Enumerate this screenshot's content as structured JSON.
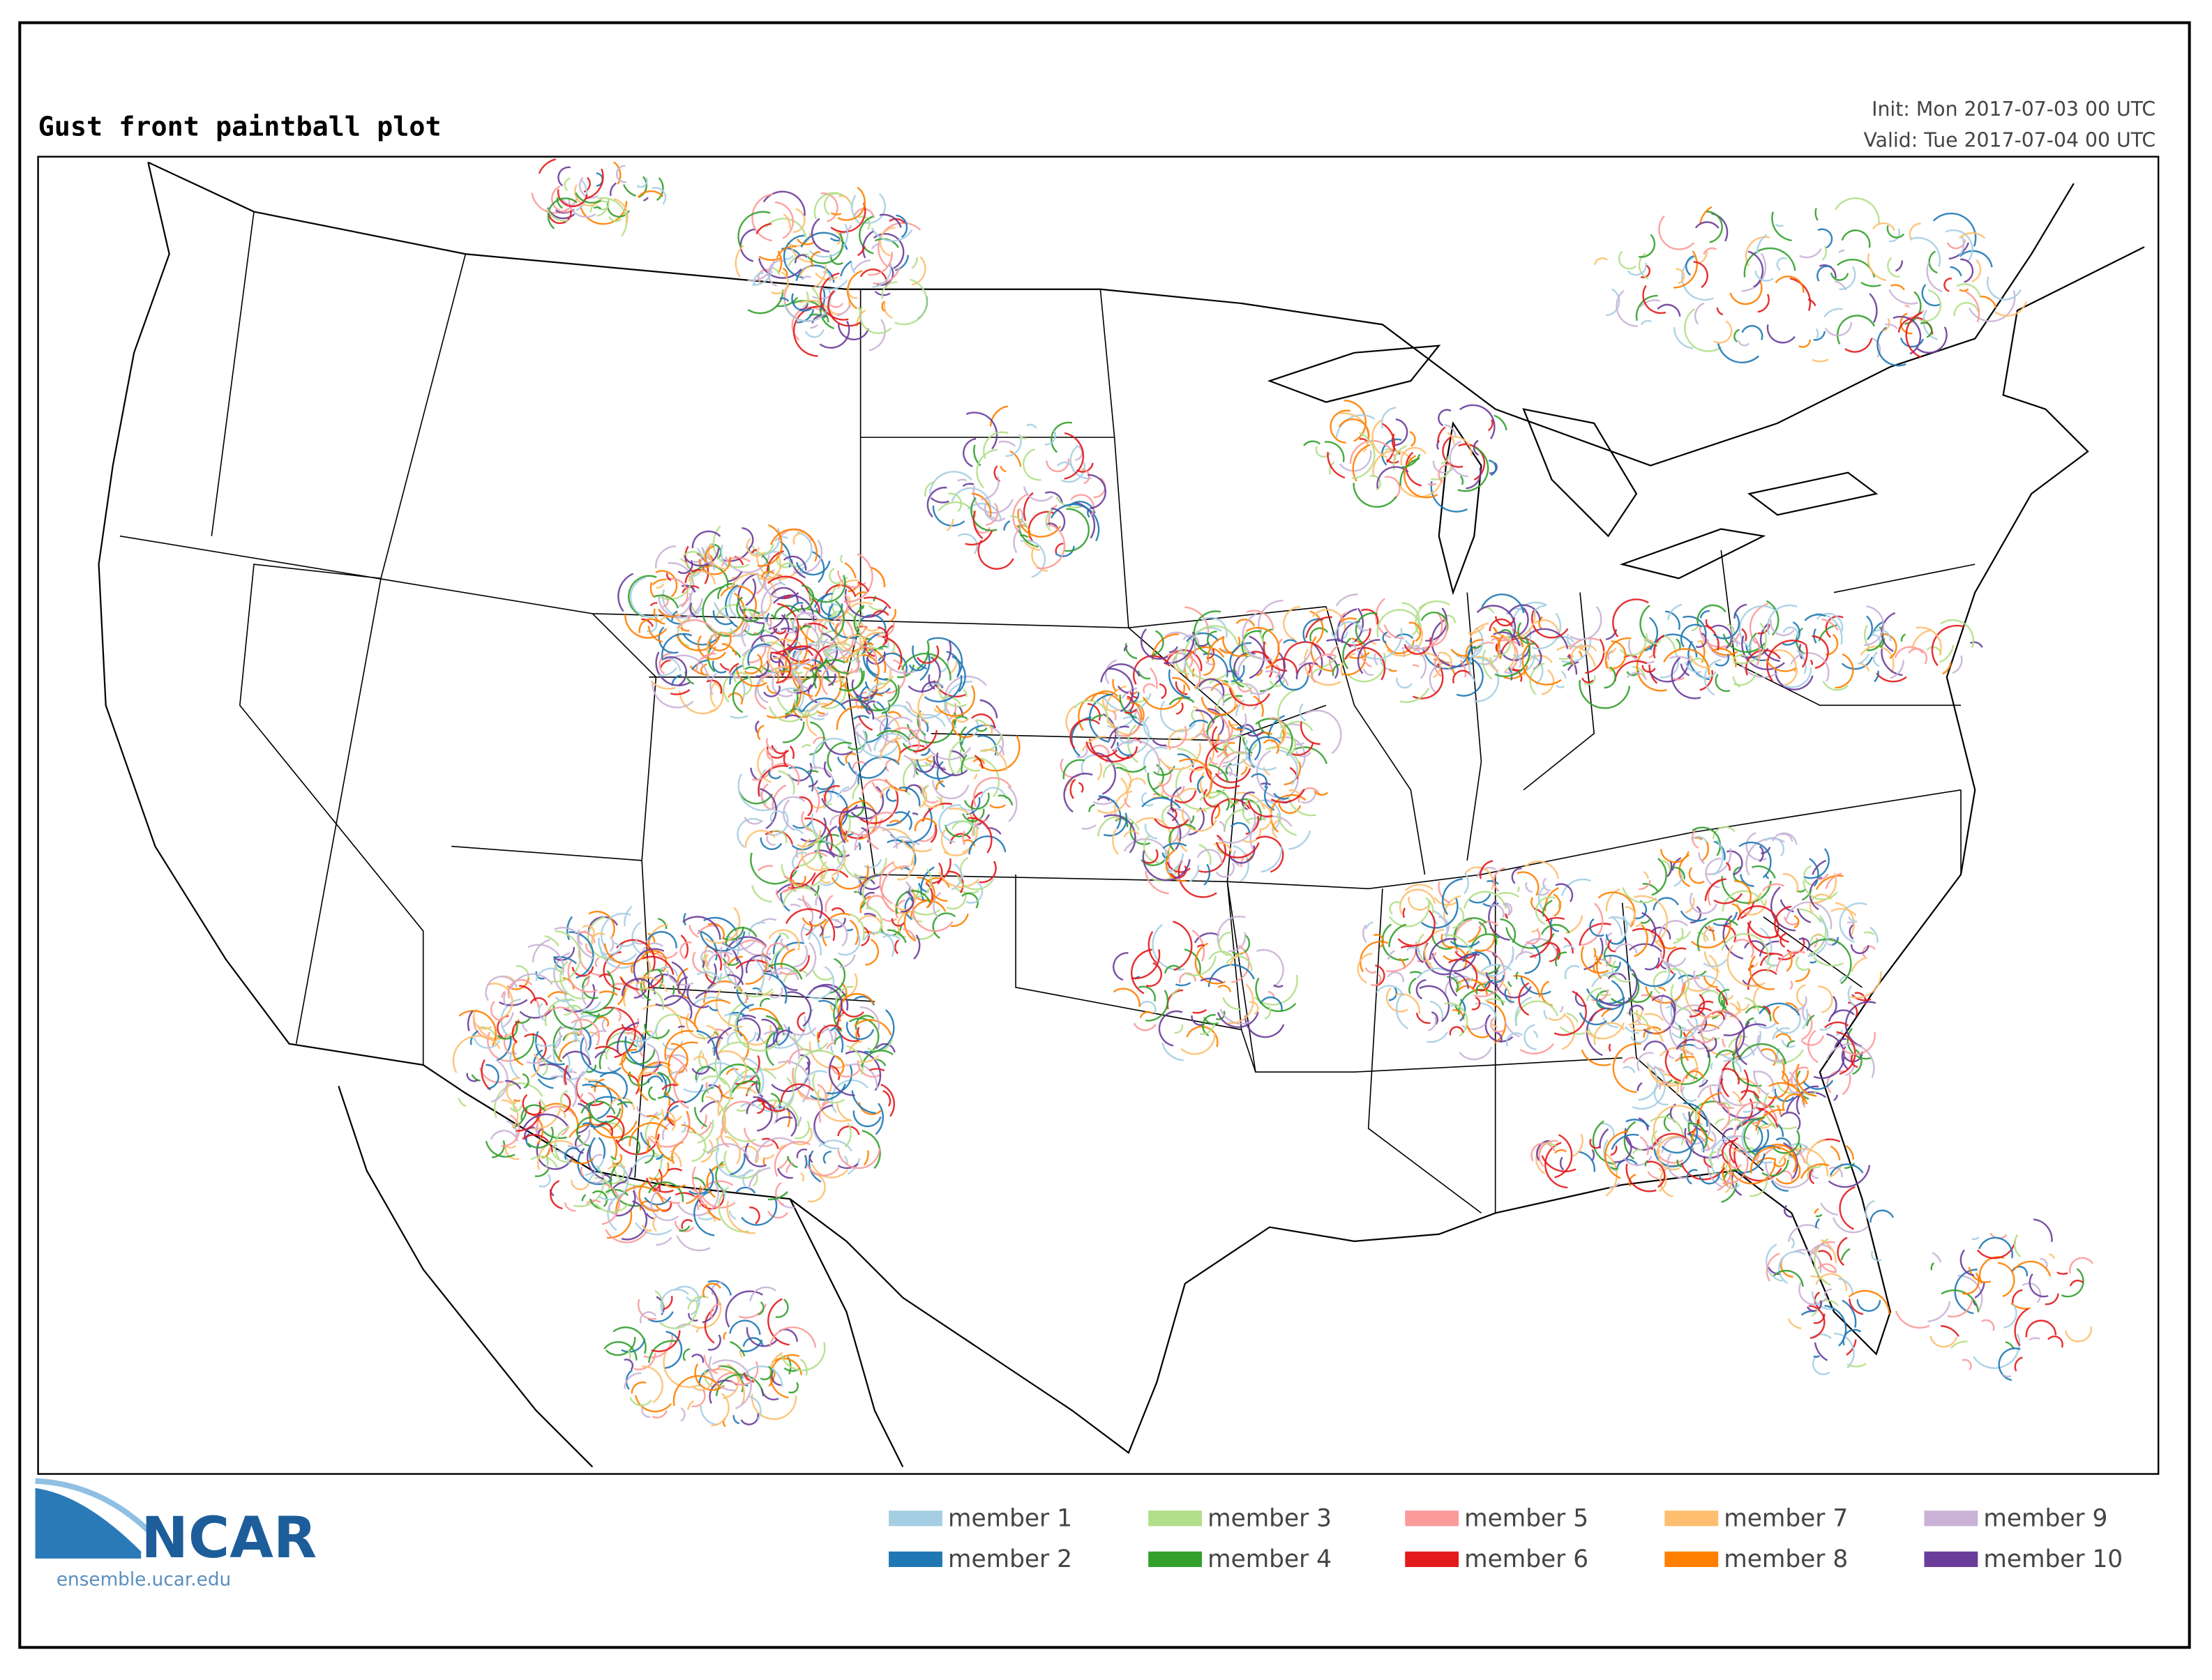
{
  "header": {
    "title": "Gust front paintball plot",
    "init": "Init: Mon 2017-07-03 00 UTC",
    "valid": "Valid: Tue 2017-07-04 00 UTC"
  },
  "legend": {
    "items": [
      {
        "label": "member 1",
        "color": "#a6cee3"
      },
      {
        "label": "member 2",
        "color": "#1f78b4"
      },
      {
        "label": "member 3",
        "color": "#b2df8a"
      },
      {
        "label": "member 4",
        "color": "#33a02c"
      },
      {
        "label": "member 5",
        "color": "#fb9a99"
      },
      {
        "label": "member 6",
        "color": "#e31a1c"
      },
      {
        "label": "member 7",
        "color": "#fdbf6f"
      },
      {
        "label": "member 8",
        "color": "#ff7f00"
      },
      {
        "label": "member 9",
        "color": "#cab2d6"
      },
      {
        "label": "member 10",
        "color": "#6a3d9a"
      }
    ]
  },
  "logo": {
    "text": "NCAR",
    "url": "ensemble.ucar.edu"
  }
}
